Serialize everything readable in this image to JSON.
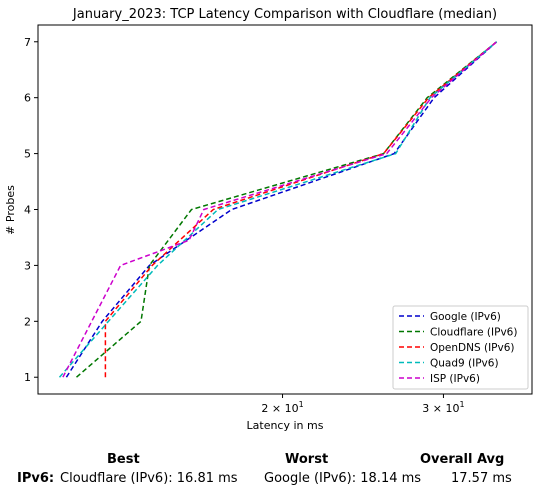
{
  "chart_data": {
    "type": "line",
    "title": "January_2023: TCP Latency Comparison with Cloudflare (median)",
    "xlabel": "Latency in ms",
    "ylabel": "# Probes",
    "xscale": "log",
    "xlim": [
      10.8,
      37.5
    ],
    "ylim": [
      0.7,
      7.3
    ],
    "x_ticks": [
      {
        "value": 20,
        "label_base": "2 × 10",
        "label_exp": "1"
      },
      {
        "value": 30,
        "label_base": "3 × 10",
        "label_exp": "1"
      }
    ],
    "y_ticks": [
      1,
      2,
      3,
      4,
      5,
      6,
      7
    ],
    "legend_position": "lower right",
    "grid": false,
    "series": [
      {
        "name": "Google (IPv6)",
        "color": "#0000cc",
        "style": "dashed",
        "points": [
          [
            11.6,
            1
          ],
          [
            12.7,
            2
          ],
          [
            14.3,
            3
          ],
          [
            17.6,
            4
          ],
          [
            26.5,
            5
          ],
          [
            29.3,
            6
          ],
          [
            34.3,
            7
          ]
        ]
      },
      {
        "name": "Cloudflare (IPv6)",
        "color": "#007700",
        "style": "dashed",
        "points": [
          [
            11.9,
            1
          ],
          [
            14.0,
            2
          ],
          [
            14.3,
            3
          ],
          [
            15.9,
            4
          ],
          [
            25.8,
            5
          ],
          [
            28.8,
            6
          ],
          [
            34.3,
            7
          ]
        ]
      },
      {
        "name": "OpenDNS (IPv6)",
        "color": "#ff0000",
        "style": "dashed",
        "points": [
          [
            12.8,
            1
          ],
          [
            12.8,
            2
          ],
          [
            14.4,
            3
          ],
          [
            16.8,
            4
          ],
          [
            25.8,
            5
          ],
          [
            28.9,
            6
          ],
          [
            34.3,
            7
          ]
        ]
      },
      {
        "name": "Quad9 (IPv6)",
        "color": "#00bbbb",
        "style": "dashed",
        "points": [
          [
            11.4,
            1
          ],
          [
            12.9,
            2
          ],
          [
            14.6,
            3
          ],
          [
            17.0,
            4
          ],
          [
            26.6,
            5
          ],
          [
            29.0,
            6
          ],
          [
            34.3,
            7
          ]
        ]
      },
      {
        "name": "ISP (IPv6)",
        "color": "#cc00cc",
        "style": "dashed",
        "points": [
          [
            11.5,
            1
          ],
          [
            13.3,
            3
          ],
          [
            15.8,
            3.45
          ],
          [
            16.4,
            4
          ],
          [
            26.0,
            5
          ],
          [
            29.1,
            6
          ],
          [
            34.3,
            7
          ]
        ]
      }
    ]
  },
  "summary": {
    "best_header": "Best",
    "worst_header": "Worst",
    "avg_header": "Overall Avg",
    "row_label": "IPv6:",
    "best_value": "Cloudflare (IPv6): 16.81 ms",
    "worst_value": "Google (IPv6): 18.14 ms",
    "avg_value": "17.57 ms"
  }
}
